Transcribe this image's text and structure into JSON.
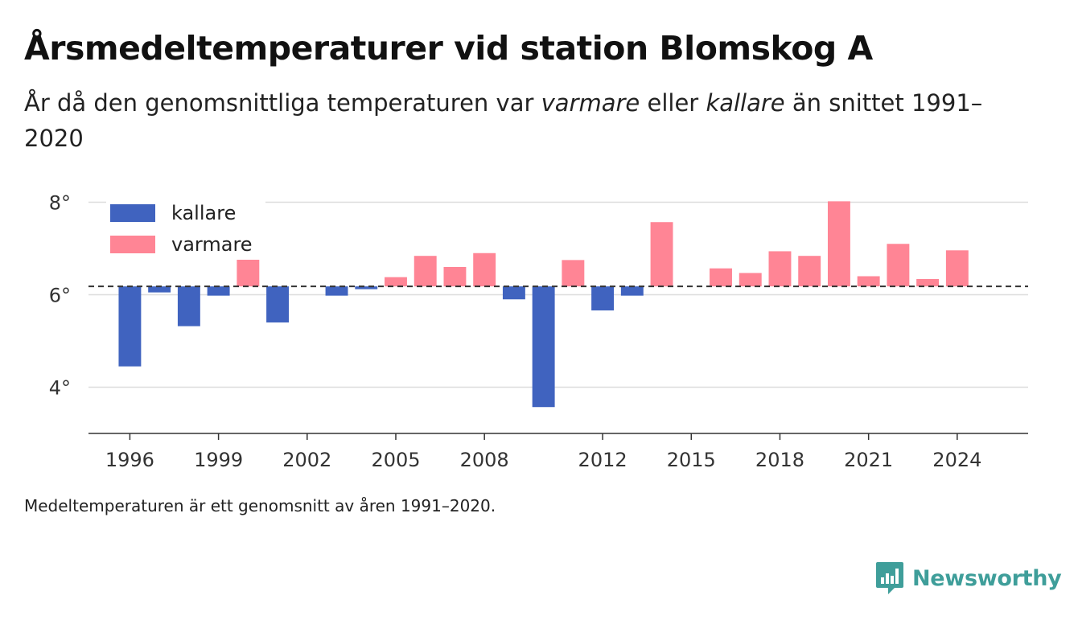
{
  "title": "Årsmedeltemperaturer vid station Blomskog A",
  "subtitle": {
    "part1": "År då den genomsnittliga temperaturen var ",
    "warmer_word": "varmare",
    "part2": " eller ",
    "colder_word": "kallare",
    "part3": " än snittet 1991–2020"
  },
  "footnote": "Medeltemperaturen är ett genomsnitt av åren 1991–2020.",
  "brand": {
    "name": "Newsworthy",
    "color": "#3f9e9a"
  },
  "legend": {
    "colder_label": "kallare",
    "warmer_label": "varmare"
  },
  "colors": {
    "colder": "#4063bf",
    "warmer": "#ff8595",
    "reference_line": "#333333",
    "grid": "#dddddd"
  },
  "chart_data": {
    "type": "bar",
    "baseline": 6.18,
    "ylim": [
      3.0,
      8.2
    ],
    "yticks": [
      4,
      6,
      8
    ],
    "ytick_suffix": "°",
    "xlim": [
      1994.6,
      2026.4
    ],
    "xticks": [
      1996,
      1999,
      2002,
      2005,
      2008,
      2012,
      2015,
      2018,
      2021,
      2024
    ],
    "grid": true,
    "legend_position": "top-left",
    "bars": [
      {
        "year": 1996,
        "value": 4.45
      },
      {
        "year": 1997,
        "value": 6.05
      },
      {
        "year": 1998,
        "value": 5.32
      },
      {
        "year": 1999,
        "value": 5.98
      },
      {
        "year": 2000,
        "value": 6.93
      },
      {
        "year": 2001,
        "value": 5.4
      },
      {
        "year": 2003,
        "value": 5.98
      },
      {
        "year": 2004,
        "value": 6.12
      },
      {
        "year": 2005,
        "value": 6.38
      },
      {
        "year": 2006,
        "value": 6.84
      },
      {
        "year": 2007,
        "value": 6.6
      },
      {
        "year": 2008,
        "value": 6.9
      },
      {
        "year": 2009,
        "value": 5.9
      },
      {
        "year": 2010,
        "value": 3.57
      },
      {
        "year": 2011,
        "value": 6.75
      },
      {
        "year": 2012,
        "value": 5.66
      },
      {
        "year": 2013,
        "value": 5.98
      },
      {
        "year": 2014,
        "value": 7.57
      },
      {
        "year": 2016,
        "value": 6.57
      },
      {
        "year": 2017,
        "value": 6.47
      },
      {
        "year": 2018,
        "value": 6.94
      },
      {
        "year": 2019,
        "value": 6.84
      },
      {
        "year": 2020,
        "value": 8.02
      },
      {
        "year": 2021,
        "value": 6.4
      },
      {
        "year": 2022,
        "value": 7.1
      },
      {
        "year": 2023,
        "value": 6.34
      },
      {
        "year": 2024,
        "value": 6.96
      }
    ]
  }
}
